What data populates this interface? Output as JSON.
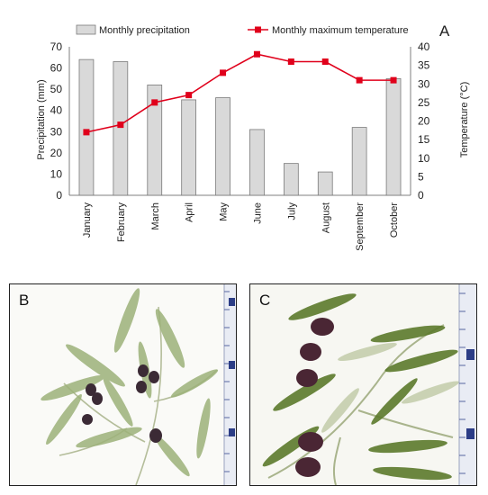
{
  "chart_data": {
    "type": "bar+line",
    "panel_label": "A",
    "categories": [
      "January",
      "February",
      "March",
      "April",
      "May",
      "June",
      "July",
      "August",
      "September",
      "October"
    ],
    "series": [
      {
        "name": "Monthly precipitation",
        "type": "bar",
        "axis": "left",
        "color": "#d9d9d9",
        "values": [
          64,
          63,
          52,
          45,
          46,
          31,
          15,
          11,
          32,
          55
        ]
      },
      {
        "name": "Monthly maximum temperature",
        "type": "line",
        "axis": "right",
        "color": "#e0001b",
        "values": [
          17,
          19,
          25,
          27,
          33,
          38,
          36,
          36,
          31,
          31
        ]
      }
    ],
    "ylabel_left": "Precipitation (mm)",
    "ylabel_right": "Temperature (°C)",
    "ylim_left": [
      0,
      70
    ],
    "ylim_right": [
      0,
      40
    ],
    "yticks_left": [
      0,
      10,
      20,
      30,
      40,
      50,
      60,
      70
    ],
    "yticks_right": [
      0,
      5,
      10,
      15,
      20,
      25,
      30,
      35,
      40
    ],
    "legend": "top",
    "grid": false
  },
  "photos": [
    {
      "label": "B",
      "subject": "olive-branch-photo",
      "ruler": "ruler"
    },
    {
      "label": "C",
      "subject": "olive-branch-photo",
      "ruler": "ruler"
    }
  ]
}
